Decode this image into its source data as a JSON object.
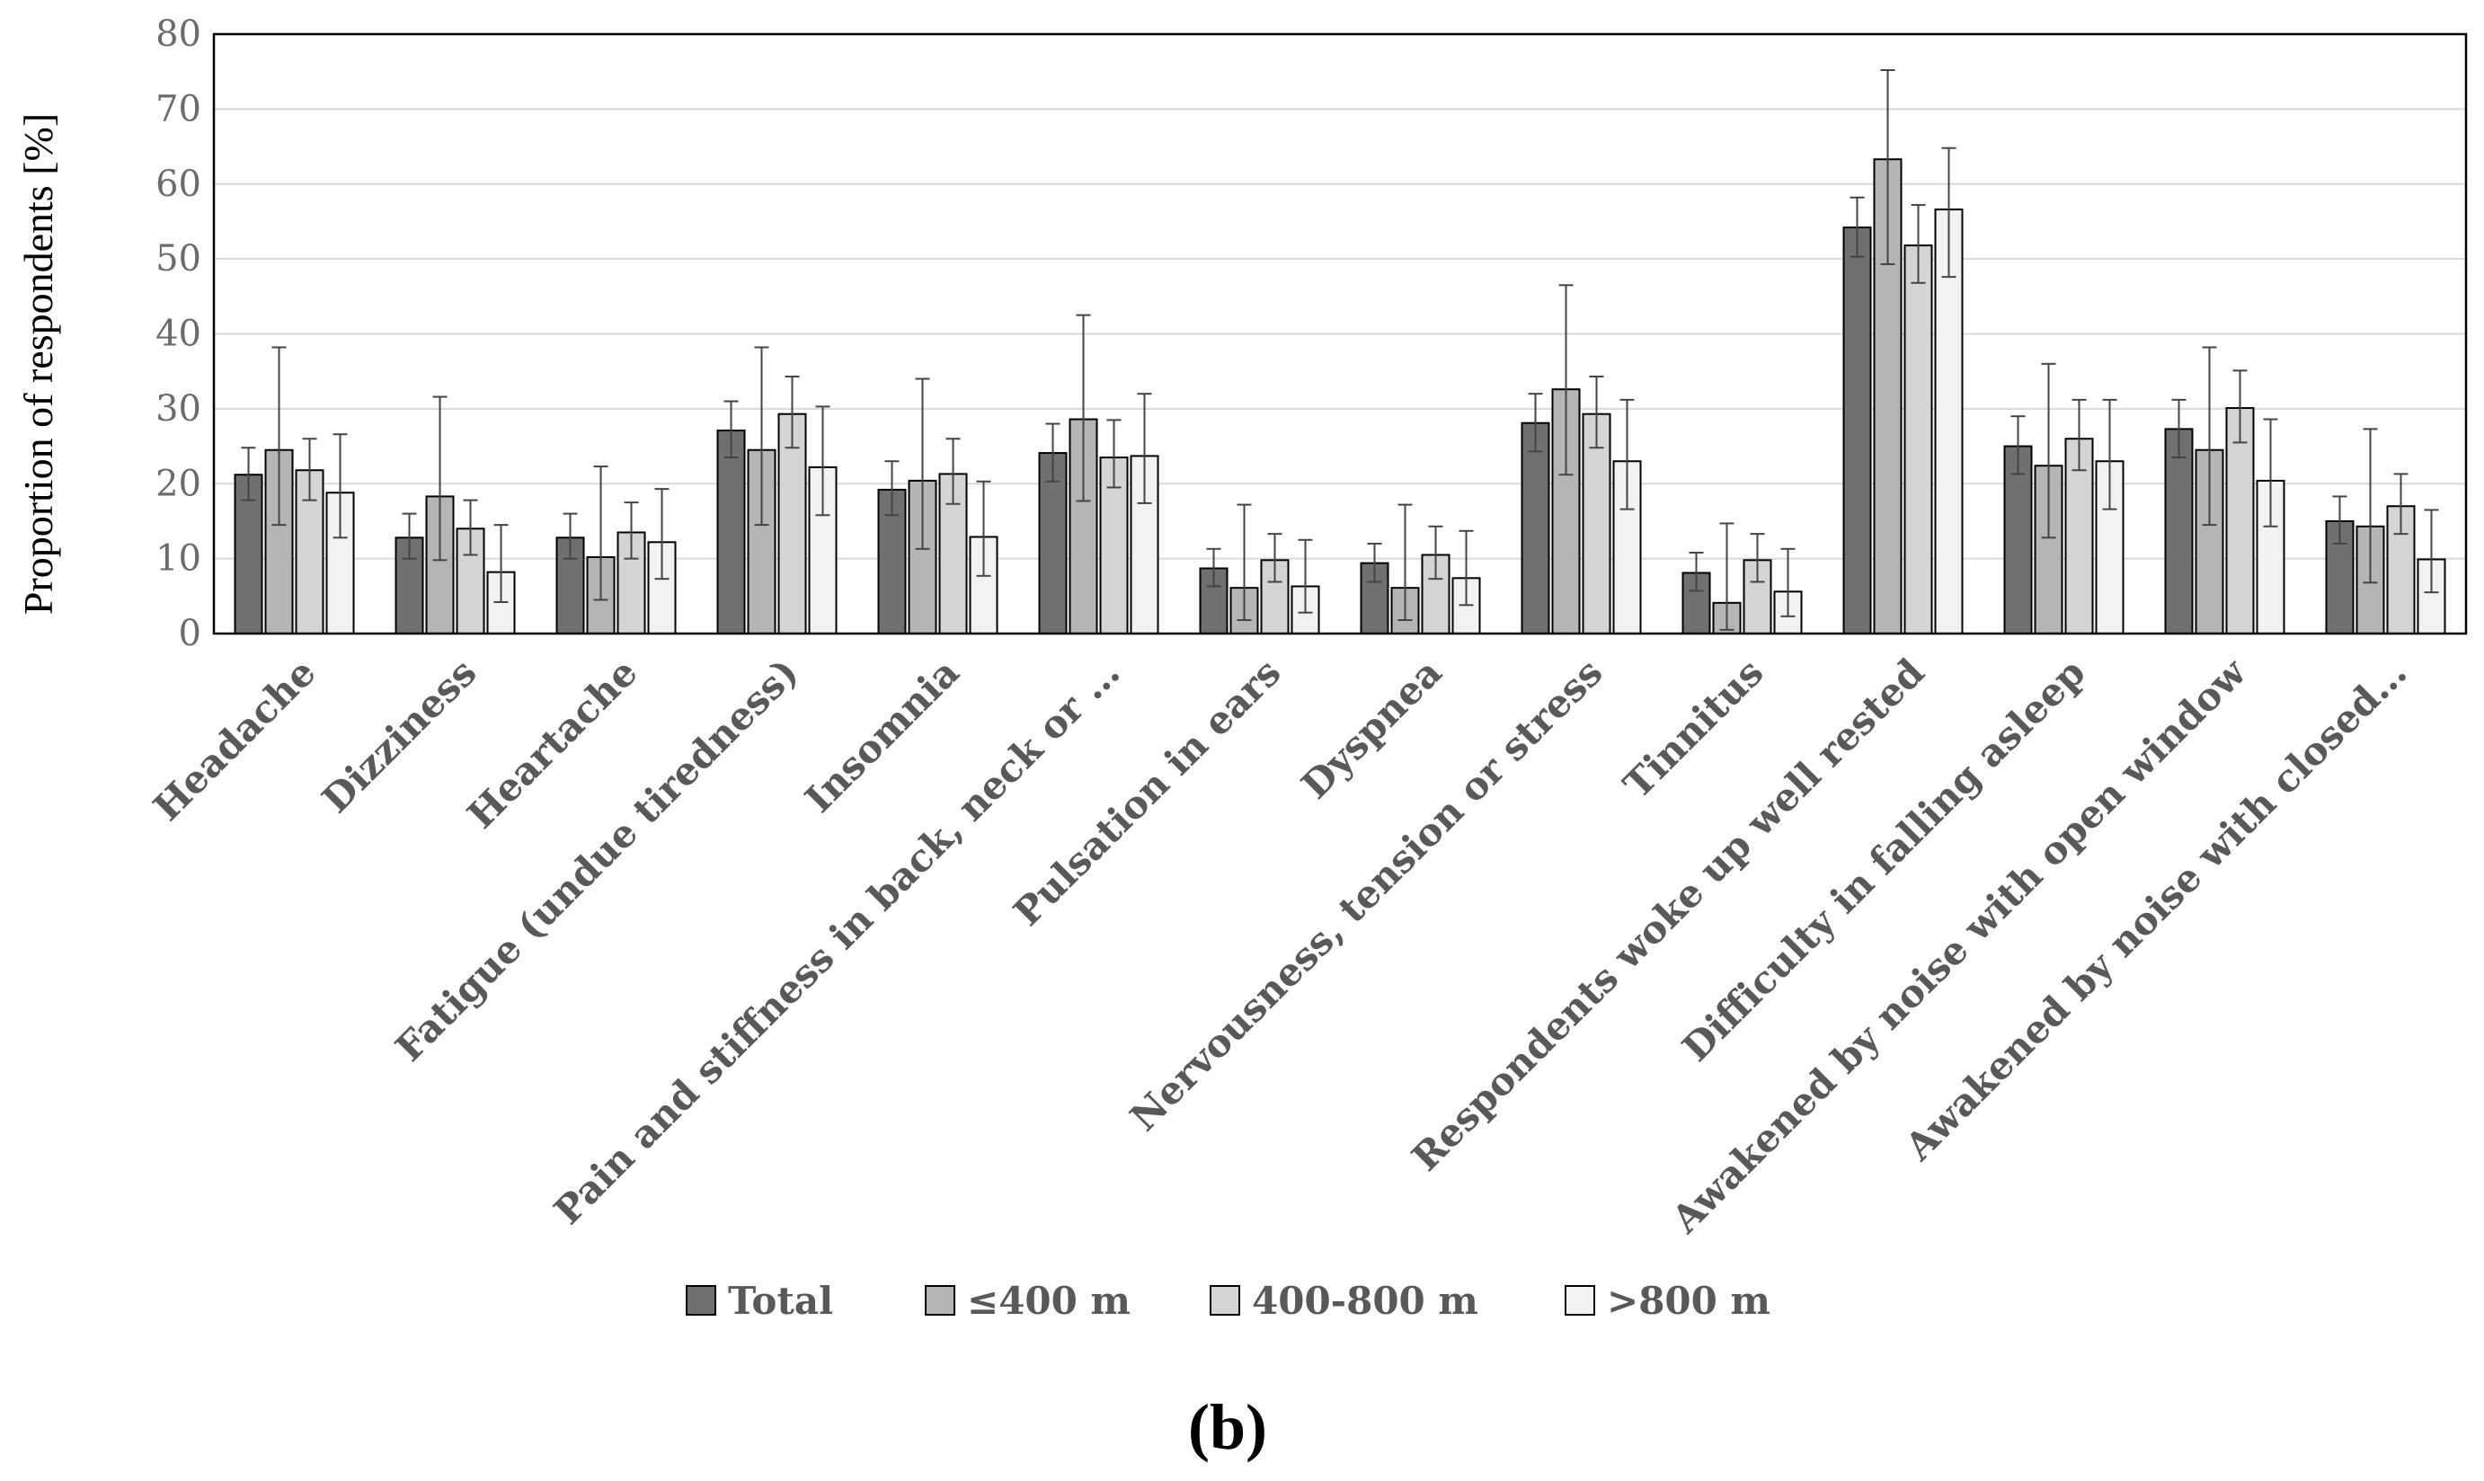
{
  "chart_data": {
    "type": "bar",
    "title": "",
    "xlabel": "",
    "ylabel": "Proportion of respondents [%]",
    "ylim": [
      0,
      80
    ],
    "yticks": [
      0,
      10,
      20,
      30,
      40,
      50,
      60,
      70,
      80
    ],
    "grid": true,
    "legend_position": "bottom",
    "categories": [
      "Headache",
      "Dizziness",
      "Heartache",
      "Fatigue (undue tiredness)",
      "Insomnia",
      "Pain and stiffness in back, neck or …",
      "Pulsation in ears",
      "Dyspnea",
      "Nervousness, tension or stress",
      "Tinnitus",
      "Respondents woke up  well rested",
      "Difficulty in falling asleep",
      "Awakened by noise with open window",
      "Awakened by noise  with closed…"
    ],
    "series": [
      {
        "name": "Total",
        "color": "#707070",
        "values": [
          21.2,
          12.8,
          12.8,
          27.1,
          19.2,
          24.1,
          8.7,
          9.4,
          28.1,
          8.1,
          54.2,
          25.0,
          27.3,
          15.0
        ],
        "err_low": [
          17.8,
          10.0,
          10.0,
          23.5,
          15.8,
          20.3,
          6.3,
          6.9,
          24.3,
          5.7,
          50.3,
          21.3,
          23.5,
          12.0
        ],
        "err_high": [
          24.8,
          16.0,
          16.0,
          31.0,
          23.0,
          28.0,
          11.3,
          12.0,
          32.0,
          10.8,
          58.2,
          29.0,
          31.2,
          18.3
        ]
      },
      {
        "name": "≤400 m",
        "color": "#b5b5b5",
        "values": [
          24.5,
          18.3,
          10.2,
          24.5,
          20.4,
          28.6,
          6.1,
          6.1,
          32.6,
          4.1,
          63.3,
          22.4,
          24.5,
          14.3
        ],
        "err_low": [
          14.5,
          9.8,
          4.5,
          14.5,
          11.3,
          17.7,
          1.8,
          1.8,
          21.2,
          0.5,
          49.3,
          12.8,
          14.5,
          6.8
        ],
        "err_high": [
          38.2,
          31.6,
          22.3,
          38.2,
          34.0,
          42.5,
          17.2,
          17.2,
          46.5,
          14.7,
          75.2,
          36.0,
          38.2,
          27.3
        ]
      },
      {
        "name": "400-800 m",
        "color": "#d4d4d4",
        "values": [
          21.8,
          14.0,
          13.5,
          29.3,
          21.3,
          23.5,
          9.8,
          10.5,
          29.3,
          9.8,
          51.8,
          26.0,
          30.1,
          17.0
        ],
        "err_low": [
          17.8,
          10.5,
          10.0,
          24.8,
          17.3,
          19.5,
          6.9,
          7.3,
          24.8,
          6.9,
          46.8,
          21.8,
          25.5,
          13.3
        ],
        "err_high": [
          26.0,
          17.8,
          17.5,
          34.3,
          26.0,
          28.5,
          13.3,
          14.3,
          34.3,
          13.3,
          57.2,
          31.2,
          35.1,
          21.3
        ]
      },
      {
        "name": ">800 m",
        "color": "#f2f2f2",
        "values": [
          18.8,
          8.2,
          12.2,
          22.2,
          12.9,
          23.7,
          6.3,
          7.4,
          23.0,
          5.6,
          56.6,
          23.0,
          20.4,
          9.9
        ],
        "err_low": [
          12.8,
          4.2,
          7.3,
          15.8,
          7.7,
          17.4,
          2.8,
          3.8,
          16.6,
          2.3,
          47.6,
          16.6,
          14.3,
          5.5
        ],
        "err_high": [
          26.6,
          14.5,
          19.3,
          30.3,
          20.3,
          32.0,
          12.5,
          13.7,
          31.2,
          11.3,
          64.8,
          31.2,
          28.6,
          16.5
        ]
      }
    ],
    "panel_label": "(b)"
  }
}
